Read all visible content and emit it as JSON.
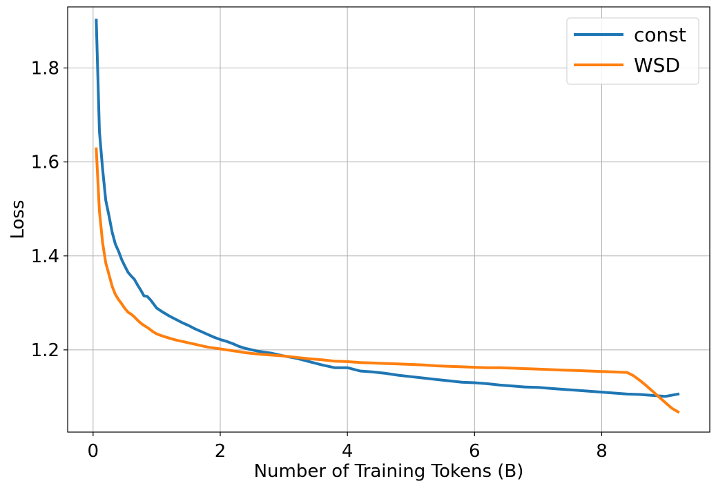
{
  "chart_data": {
    "type": "line",
    "title": "",
    "xlabel": "Number of Training Tokens (B)",
    "ylabel": "Loss",
    "xlim": [
      -0.4,
      9.7
    ],
    "ylim": [
      1.025,
      1.93
    ],
    "xticks": [
      0,
      2,
      4,
      6,
      8
    ],
    "yticks": [
      1.2,
      1.4,
      1.6,
      1.8
    ],
    "xtick_labels": [
      "0",
      "2",
      "4",
      "6",
      "8"
    ],
    "ytick_labels": [
      "1.2",
      "1.4",
      "1.6",
      "1.8"
    ],
    "grid": true,
    "legend_position": "top-right",
    "series": [
      {
        "name": "const",
        "color": "#1f77b4",
        "x": [
          0.05,
          0.1,
          0.15,
          0.2,
          0.25,
          0.3,
          0.35,
          0.4,
          0.45,
          0.5,
          0.55,
          0.6,
          0.65,
          0.7,
          0.75,
          0.8,
          0.85,
          0.9,
          0.95,
          1.0,
          1.1,
          1.2,
          1.3,
          1.4,
          1.5,
          1.6,
          1.7,
          1.8,
          1.9,
          2.0,
          2.1,
          2.2,
          2.3,
          2.4,
          2.5,
          2.6,
          2.7,
          2.8,
          2.9,
          3.0,
          3.2,
          3.4,
          3.6,
          3.8,
          4.0,
          4.2,
          4.4,
          4.6,
          4.8,
          5.0,
          5.2,
          5.4,
          5.6,
          5.8,
          6.0,
          6.2,
          6.4,
          6.6,
          6.8,
          7.0,
          7.2,
          7.4,
          7.6,
          7.8,
          8.0,
          8.2,
          8.4,
          8.6,
          8.8,
          9.0,
          9.2
        ],
        "values": [
          1.902,
          1.665,
          1.585,
          1.518,
          1.485,
          1.45,
          1.425,
          1.41,
          1.392,
          1.378,
          1.365,
          1.357,
          1.35,
          1.338,
          1.327,
          1.315,
          1.314,
          1.307,
          1.298,
          1.289,
          1.28,
          1.272,
          1.265,
          1.258,
          1.252,
          1.245,
          1.239,
          1.233,
          1.227,
          1.222,
          1.218,
          1.213,
          1.207,
          1.203,
          1.2,
          1.197,
          1.195,
          1.193,
          1.19,
          1.187,
          1.182,
          1.175,
          1.168,
          1.162,
          1.162,
          1.155,
          1.153,
          1.15,
          1.146,
          1.143,
          1.14,
          1.137,
          1.134,
          1.131,
          1.13,
          1.128,
          1.125,
          1.123,
          1.121,
          1.12,
          1.118,
          1.116,
          1.114,
          1.112,
          1.11,
          1.108,
          1.106,
          1.105,
          1.103,
          1.101,
          1.106
        ]
      },
      {
        "name": "WSD",
        "color": "#ff7f0e",
        "x": [
          0.05,
          0.1,
          0.15,
          0.2,
          0.25,
          0.3,
          0.35,
          0.4,
          0.45,
          0.5,
          0.55,
          0.6,
          0.65,
          0.7,
          0.75,
          0.8,
          0.85,
          0.9,
          0.95,
          1.0,
          1.1,
          1.2,
          1.3,
          1.4,
          1.5,
          1.6,
          1.7,
          1.8,
          1.9,
          2.0,
          2.2,
          2.4,
          2.6,
          2.8,
          3.0,
          3.2,
          3.4,
          3.6,
          3.8,
          4.0,
          4.2,
          4.4,
          4.6,
          4.8,
          5.0,
          5.2,
          5.4,
          5.6,
          5.8,
          6.0,
          6.2,
          6.4,
          6.6,
          6.8,
          7.0,
          7.2,
          7.4,
          7.6,
          7.8,
          8.0,
          8.2,
          8.4,
          8.5,
          8.6,
          8.7,
          8.8,
          8.9,
          9.0,
          9.1,
          9.2
        ],
        "values": [
          1.628,
          1.495,
          1.428,
          1.385,
          1.36,
          1.335,
          1.318,
          1.307,
          1.298,
          1.288,
          1.28,
          1.276,
          1.27,
          1.263,
          1.257,
          1.252,
          1.248,
          1.243,
          1.238,
          1.234,
          1.229,
          1.225,
          1.221,
          1.218,
          1.215,
          1.212,
          1.209,
          1.206,
          1.204,
          1.202,
          1.198,
          1.194,
          1.191,
          1.189,
          1.187,
          1.184,
          1.181,
          1.179,
          1.176,
          1.175,
          1.173,
          1.172,
          1.171,
          1.17,
          1.169,
          1.168,
          1.166,
          1.165,
          1.164,
          1.163,
          1.162,
          1.162,
          1.161,
          1.16,
          1.159,
          1.158,
          1.157,
          1.156,
          1.155,
          1.154,
          1.153,
          1.152,
          1.145,
          1.135,
          1.124,
          1.112,
          1.1,
          1.088,
          1.076,
          1.068
        ]
      }
    ]
  }
}
